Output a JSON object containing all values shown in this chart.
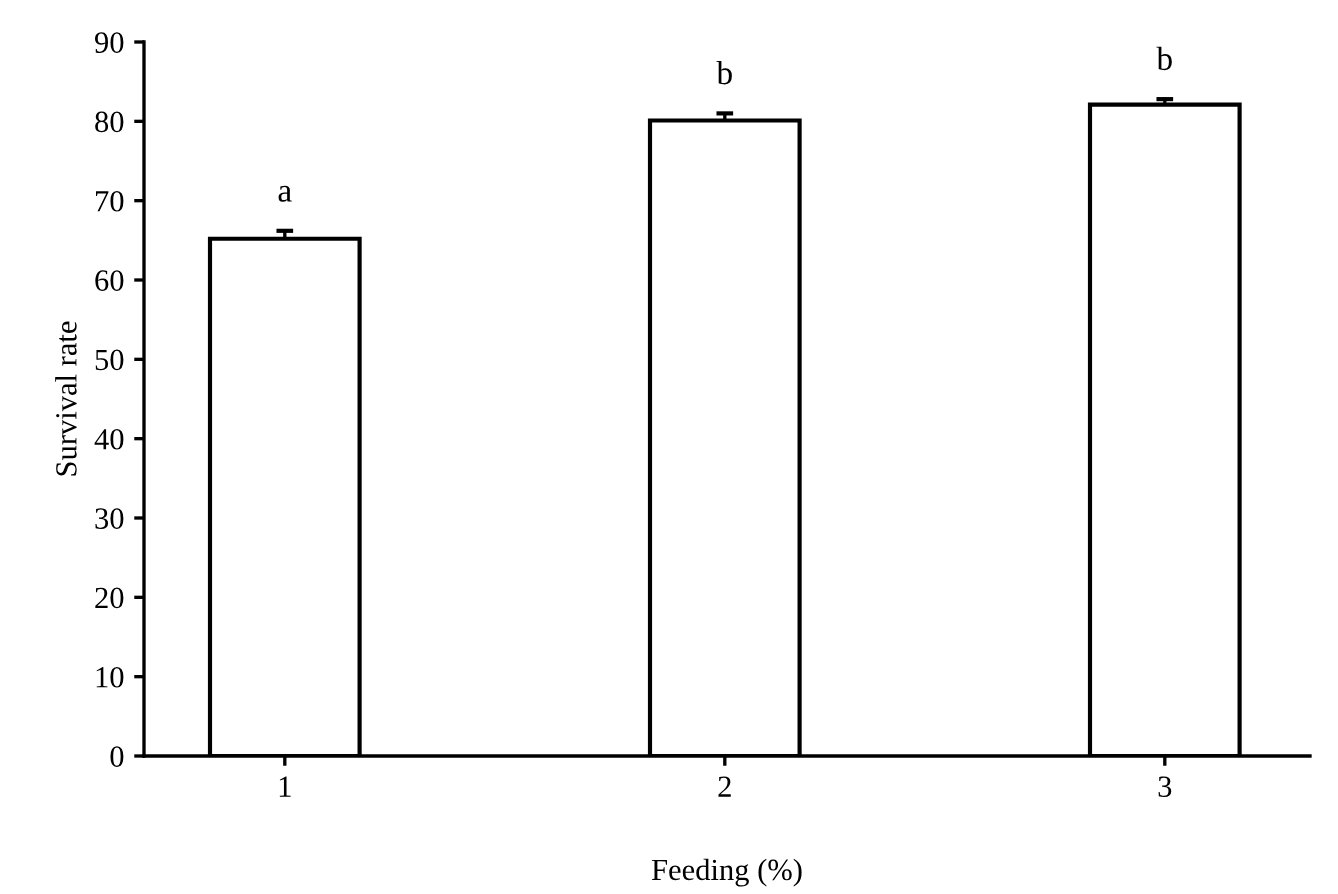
{
  "chart_data": {
    "type": "bar",
    "xlabel": "Feeding (%)",
    "ylabel": "Survival rate",
    "categories": [
      "1",
      "2",
      "3"
    ],
    "values": [
      65.2,
      80.1,
      82.1
    ],
    "errors": [
      1.0,
      0.9,
      0.7
    ],
    "color": "#ffffff",
    "ylim": [
      0,
      90
    ],
    "yticks": [
      0,
      10,
      20,
      30,
      40,
      50,
      60,
      70,
      80,
      90
    ],
    "grid": false,
    "annotations": [
      "a",
      "b",
      "b"
    ]
  }
}
